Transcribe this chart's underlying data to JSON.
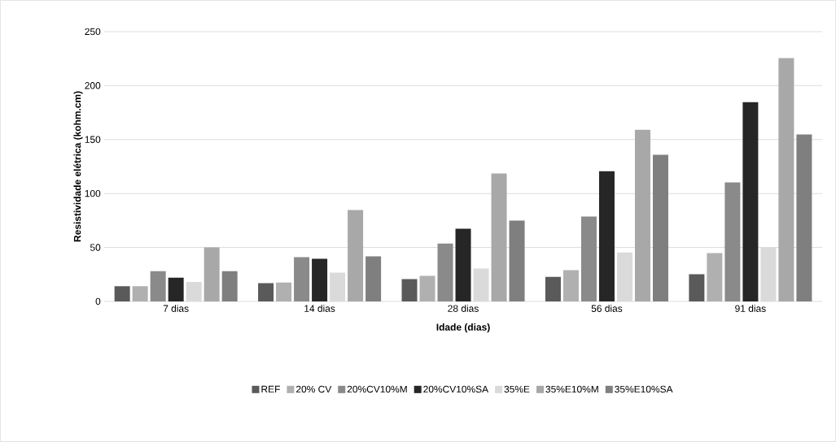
{
  "chart_data": {
    "type": "bar",
    "xlabel": "Idade (dias)",
    "ylabel": "Resistividade elétrica (kohm.cm)",
    "categories": [
      "7 dias",
      "14 dias",
      "28 dias",
      "56 dias",
      "91 dias"
    ],
    "series": [
      {
        "name": "REF",
        "color": "#5a5a5a",
        "values": [
          14,
          17,
          20.6,
          22.8,
          25.1
        ]
      },
      {
        "name": "20% CV",
        "color": "#b0b0b0",
        "values": [
          14,
          17.5,
          23.6,
          28.9,
          44.7
        ]
      },
      {
        "name": "20%CV10%M",
        "color": "#8a8a8a",
        "values": [
          28,
          41,
          53.7,
          78.6,
          110.2
        ]
      },
      {
        "name": "20%CV10%SA",
        "color": "#262626",
        "values": [
          22,
          39.5,
          67.3,
          120.7,
          184.7
        ]
      },
      {
        "name": "35%E",
        "color": "#dadada",
        "values": [
          18,
          26.6,
          30.4,
          45.4,
          49.7
        ]
      },
      {
        "name": "35%E10%M",
        "color": "#a8a8a8",
        "values": [
          50,
          84.6,
          118.5,
          159.1,
          225.4
        ]
      },
      {
        "name": "35%E10%SA",
        "color": "#7f7f7f",
        "values": [
          28,
          41.7,
          74.8,
          135.8,
          154.6
        ]
      }
    ],
    "ylim": [
      0,
      250
    ],
    "yticks": [
      0,
      50,
      100,
      150,
      200,
      250
    ],
    "grid": "y",
    "legend": "bottom"
  }
}
